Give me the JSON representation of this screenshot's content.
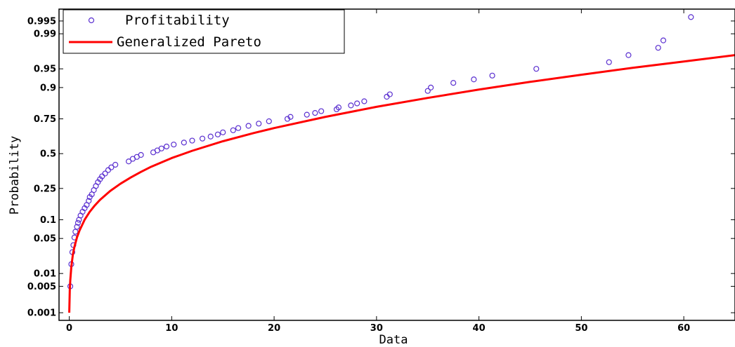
{
  "chart_data": {
    "type": "scatter",
    "title": "",
    "xlabel": "Data",
    "ylabel": "Probability",
    "xlim": [
      -1,
      65
    ],
    "x_ticks": [
      0,
      10,
      20,
      30,
      40,
      50,
      60
    ],
    "y_scale": "normal-probability",
    "y_ticks": [
      {
        "value": 0.001,
        "label": "0.001"
      },
      {
        "value": 0.005,
        "label": "0.005"
      },
      {
        "value": 0.01,
        "label": "0.01"
      },
      {
        "value": 0.05,
        "label": "0.05"
      },
      {
        "value": 0.1,
        "label": "0.1"
      },
      {
        "value": 0.25,
        "label": "0.25"
      },
      {
        "value": 0.5,
        "label": "0.5"
      },
      {
        "value": 0.75,
        "label": "0.75"
      },
      {
        "value": 0.9,
        "label": "0.9"
      },
      {
        "value": 0.95,
        "label": "0.95"
      },
      {
        "value": 0.99,
        "label": "0.99"
      },
      {
        "value": 0.995,
        "label": "0.995"
      }
    ],
    "grid": false,
    "legend_position": "top-left",
    "series": [
      {
        "name": "Profitability",
        "kind": "markers",
        "marker": "circle",
        "color": "#5a2fd0",
        "points": [
          [
            0.1,
            0.005
          ],
          [
            0.2,
            0.016
          ],
          [
            0.3,
            0.028
          ],
          [
            0.4,
            0.038
          ],
          [
            0.5,
            0.052
          ],
          [
            0.6,
            0.065
          ],
          [
            0.75,
            0.078
          ],
          [
            0.85,
            0.09
          ],
          [
            0.95,
            0.1
          ],
          [
            1.1,
            0.115
          ],
          [
            1.3,
            0.13
          ],
          [
            1.5,
            0.145
          ],
          [
            1.7,
            0.16
          ],
          [
            1.9,
            0.18
          ],
          [
            2.0,
            0.2
          ],
          [
            2.2,
            0.215
          ],
          [
            2.4,
            0.24
          ],
          [
            2.6,
            0.265
          ],
          [
            2.8,
            0.29
          ],
          [
            3.0,
            0.31
          ],
          [
            3.2,
            0.33
          ],
          [
            3.5,
            0.35
          ],
          [
            3.8,
            0.375
          ],
          [
            4.1,
            0.395
          ],
          [
            4.5,
            0.415
          ],
          [
            5.8,
            0.44
          ],
          [
            6.2,
            0.46
          ],
          [
            6.6,
            0.475
          ],
          [
            7.0,
            0.49
          ],
          [
            8.2,
            0.51
          ],
          [
            8.6,
            0.525
          ],
          [
            9.0,
            0.54
          ],
          [
            9.5,
            0.555
          ],
          [
            10.2,
            0.57
          ],
          [
            11.2,
            0.585
          ],
          [
            12.0,
            0.6
          ],
          [
            13.0,
            0.615
          ],
          [
            13.8,
            0.63
          ],
          [
            14.5,
            0.645
          ],
          [
            15.0,
            0.66
          ],
          [
            16.0,
            0.675
          ],
          [
            16.5,
            0.69
          ],
          [
            17.5,
            0.705
          ],
          [
            18.5,
            0.72
          ],
          [
            19.5,
            0.735
          ],
          [
            21.3,
            0.75
          ],
          [
            21.6,
            0.762
          ],
          [
            23.2,
            0.775
          ],
          [
            24.0,
            0.785
          ],
          [
            24.6,
            0.795
          ],
          [
            26.1,
            0.805
          ],
          [
            26.3,
            0.815
          ],
          [
            27.5,
            0.825
          ],
          [
            28.1,
            0.835
          ],
          [
            28.8,
            0.845
          ],
          [
            31.0,
            0.865
          ],
          [
            31.3,
            0.875
          ],
          [
            35.0,
            0.888
          ],
          [
            35.3,
            0.9
          ],
          [
            37.5,
            0.915
          ],
          [
            39.5,
            0.925
          ],
          [
            41.3,
            0.935
          ],
          [
            45.6,
            0.95
          ],
          [
            52.7,
            0.962
          ],
          [
            54.6,
            0.972
          ],
          [
            57.5,
            0.98
          ],
          [
            58.0,
            0.986
          ],
          [
            60.7,
            0.996
          ]
        ]
      },
      {
        "name": "Generalized Pareto",
        "kind": "line",
        "color": "#ff0000",
        "points": [
          [
            0.0,
            0.001
          ],
          [
            0.05,
            0.004
          ],
          [
            0.1,
            0.007
          ],
          [
            0.2,
            0.014
          ],
          [
            0.35,
            0.025
          ],
          [
            0.5,
            0.035
          ],
          [
            0.75,
            0.052
          ],
          [
            1.0,
            0.068
          ],
          [
            1.5,
            0.1
          ],
          [
            2.0,
            0.13
          ],
          [
            2.5,
            0.158
          ],
          [
            3.0,
            0.185
          ],
          [
            4.0,
            0.235
          ],
          [
            5.0,
            0.28
          ],
          [
            6.0,
            0.322
          ],
          [
            7.0,
            0.362
          ],
          [
            8.0,
            0.4
          ],
          [
            10.0,
            0.466
          ],
          [
            12.0,
            0.522
          ],
          [
            15.0,
            0.595
          ],
          [
            18.0,
            0.655
          ],
          [
            20.0,
            0.69
          ],
          [
            25.0,
            0.762
          ],
          [
            30.0,
            0.818
          ],
          [
            35.0,
            0.86
          ],
          [
            40.0,
            0.893
          ],
          [
            45.0,
            0.918
          ],
          [
            50.0,
            0.937
          ],
          [
            55.0,
            0.952
          ],
          [
            60.0,
            0.963
          ],
          [
            65.0,
            0.972
          ]
        ]
      }
    ]
  }
}
